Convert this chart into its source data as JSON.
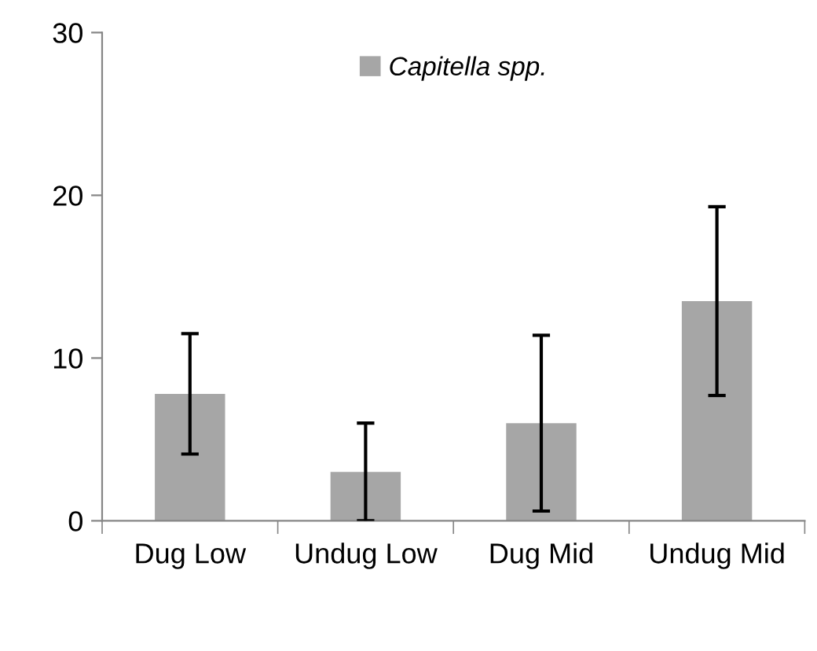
{
  "chart_data": {
    "type": "bar",
    "categories": [
      "Dug Low",
      "Undug Low",
      "Dug Mid",
      "Undug Mid"
    ],
    "series": [
      {
        "name": "Capitella spp.",
        "color": "#a6a6a6",
        "values": [
          7.8,
          3.0,
          6.0,
          13.5
        ],
        "errors": [
          3.7,
          3.0,
          5.4,
          5.8
        ]
      }
    ],
    "ylim": [
      0,
      30
    ],
    "yticks": [
      0,
      10,
      20,
      30
    ],
    "grid": false,
    "legend": "top"
  }
}
